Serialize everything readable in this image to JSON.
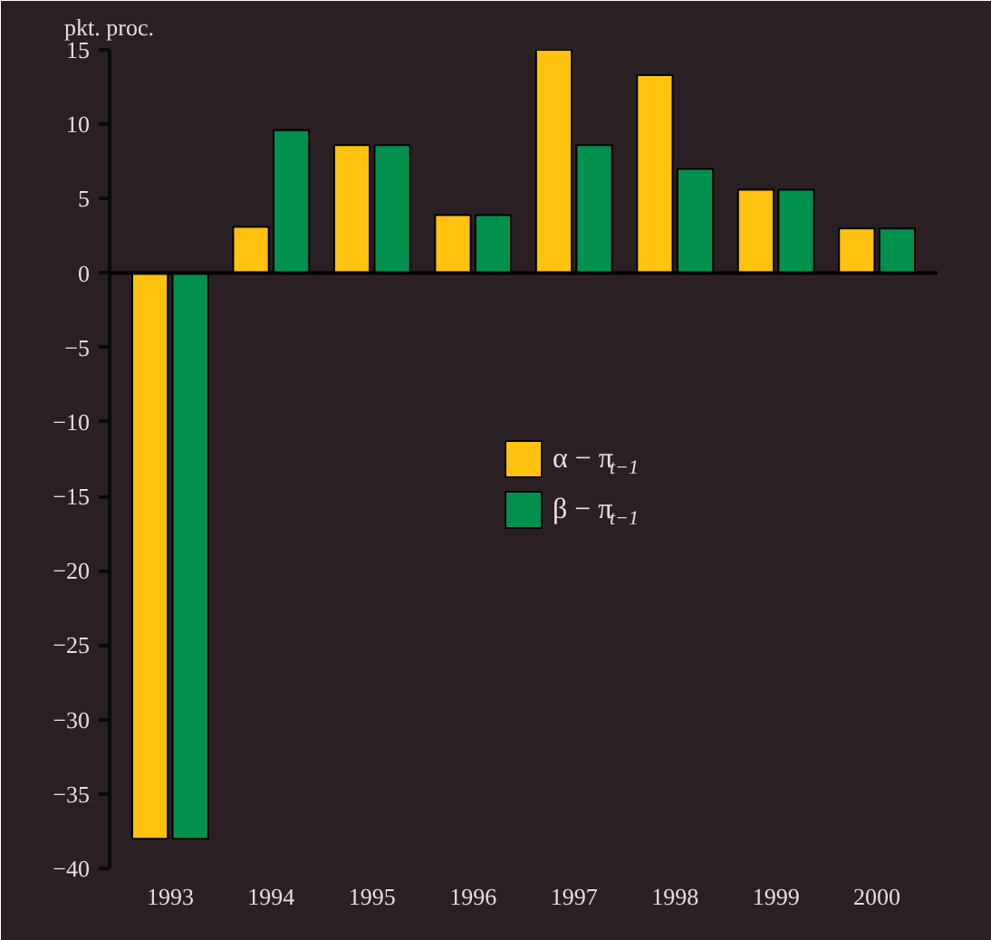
{
  "chart_data": {
    "type": "bar",
    "ylabel": "pkt. proc.",
    "categories": [
      "1993",
      "1994",
      "1995",
      "1996",
      "1997",
      "1998",
      "1999",
      "2000"
    ],
    "series": [
      {
        "name": "α − π$_{t−1}$",
        "color": "#ffc20e",
        "values": [
          -38,
          3.1,
          8.6,
          3.9,
          15,
          13.3,
          5.6,
          3.0
        ]
      },
      {
        "name": "β − π$_{t−1}$",
        "color": "#00914f",
        "values": [
          -38,
          9.6,
          8.6,
          3.9,
          8.6,
          7.0,
          5.6,
          3.0
        ]
      }
    ],
    "ylim": [
      -40,
      15
    ],
    "yticks": [
      -40,
      -35,
      -30,
      -25,
      -20,
      -15,
      -10,
      -5,
      0,
      5,
      10,
      15
    ],
    "grid": false,
    "ref_lines": [
      {
        "axis": "y",
        "value": 0,
        "color": "#000000"
      }
    ],
    "legend": "center"
  }
}
